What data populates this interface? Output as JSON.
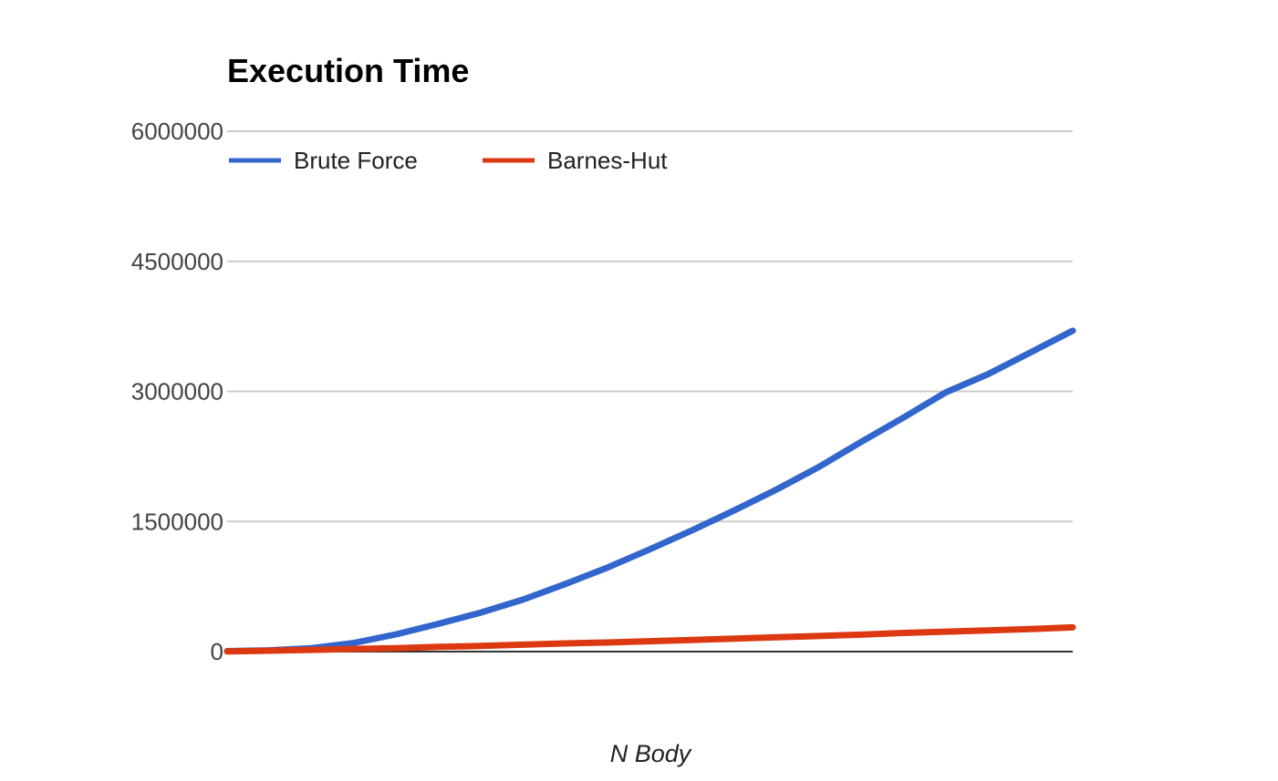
{
  "chart_data": {
    "type": "line",
    "title": "Execution Time",
    "xlabel": "N Body",
    "ylabel": "",
    "ylim": [
      0,
      6000000
    ],
    "yticks": [
      "0",
      "1500000",
      "3000000",
      "4500000",
      "6000000"
    ],
    "xlim": [
      0,
      1000
    ],
    "grid": true,
    "legend_position": "top-left",
    "series": [
      {
        "name": "Brute Force",
        "color": "#3366cc",
        "x": [
          0,
          50,
          100,
          150,
          200,
          250,
          300,
          350,
          400,
          450,
          500,
          550,
          600,
          650,
          700,
          750,
          800,
          850,
          900,
          950,
          1000
        ],
        "values": [
          5000,
          15000,
          40000,
          100000,
          200000,
          320000,
          450000,
          600000,
          780000,
          970000,
          1180000,
          1400000,
          1630000,
          1870000,
          2130000,
          2420000,
          2700000,
          2990000,
          3200000,
          3450000,
          3700000
        ]
      },
      {
        "name": "Barnes-Hut",
        "color": "#dc3912",
        "x": [
          0,
          50,
          100,
          150,
          200,
          250,
          300,
          350,
          400,
          450,
          500,
          550,
          600,
          650,
          700,
          750,
          800,
          850,
          900,
          950,
          1000
        ],
        "values": [
          2000,
          10000,
          20000,
          30000,
          40000,
          55000,
          65000,
          80000,
          95000,
          105000,
          120000,
          135000,
          150000,
          165000,
          180000,
          195000,
          215000,
          230000,
          245000,
          260000,
          280000
        ]
      }
    ]
  }
}
